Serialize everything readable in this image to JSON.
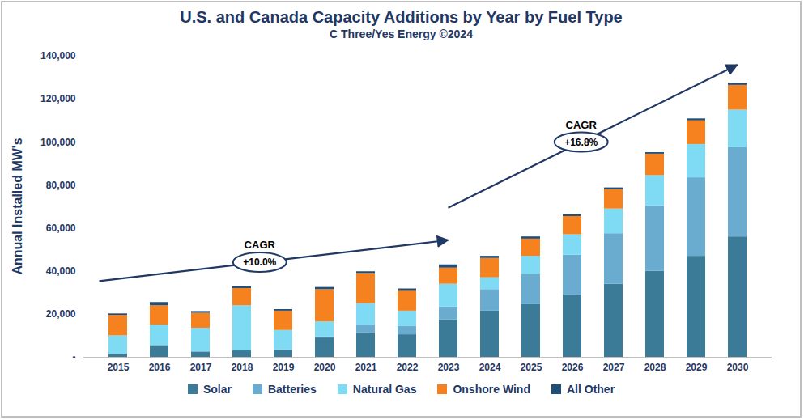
{
  "chart_data": {
    "type": "bar",
    "title": "U.S. and Canada Capacity Additions by Year by Fuel Type",
    "subtitle": "C Three/Yes Energy ©2024",
    "y_label": "Annual Installed MW's",
    "stacked": true,
    "grid": false,
    "legend": "bottom",
    "categories": [
      "2015",
      "2016",
      "2017",
      "2018",
      "2019",
      "2020",
      "2021",
      "2022",
      "2023",
      "2024",
      "2025",
      "2026",
      "2027",
      "2028",
      "2029",
      "2030"
    ],
    "series": [
      {
        "name": "Solar",
        "color": "#3b7b97",
        "values": [
          1500,
          5500,
          2500,
          3000,
          3500,
          9000,
          11500,
          10500,
          17500,
          21500,
          24500,
          29000,
          34000,
          40000,
          47000,
          56000
        ]
      },
      {
        "name": "Batteries",
        "color": "#69acd0",
        "values": [
          0,
          0,
          0,
          0,
          0,
          500,
          3500,
          4000,
          6000,
          10000,
          14000,
          18500,
          23500,
          30500,
          36500,
          41500
        ]
      },
      {
        "name": "Natural Gas",
        "color": "#7fdbf3",
        "values": [
          8500,
          9500,
          11000,
          21000,
          9000,
          7000,
          10000,
          7000,
          10500,
          5500,
          8500,
          9500,
          11500,
          14000,
          15500,
          17500
        ]
      },
      {
        "name": "Onshore Wind",
        "color": "#f5821f",
        "values": [
          9500,
          9000,
          7000,
          8000,
          9000,
          15000,
          14000,
          9500,
          7500,
          9000,
          8000,
          8500,
          9000,
          10000,
          11000,
          11500
        ]
      },
      {
        "name": "All Other",
        "color": "#1f4e79",
        "values": [
          700,
          1500,
          800,
          800,
          700,
          1000,
          800,
          800,
          1500,
          1000,
          1000,
          800,
          800,
          700,
          900,
          1000
        ]
      }
    ],
    "ylim": [
      0,
      140000
    ],
    "yticks": [
      {
        "value": 0,
        "label": "-"
      },
      {
        "value": 20000,
        "label": "20,000"
      },
      {
        "value": 40000,
        "label": "40,000"
      },
      {
        "value": 60000,
        "label": "60,000"
      },
      {
        "value": 80000,
        "label": "80,000"
      },
      {
        "value": 100000,
        "label": "100,000"
      },
      {
        "value": 120000,
        "label": "120,000"
      },
      {
        "value": 140000,
        "label": "140,000"
      }
    ],
    "annotations": [
      {
        "label": "CAGR",
        "text": "+10.0%",
        "from": "2015",
        "to": "2023"
      },
      {
        "label": "CAGR",
        "text": "+16.8%",
        "from": "2023",
        "to": "2030"
      }
    ]
  }
}
